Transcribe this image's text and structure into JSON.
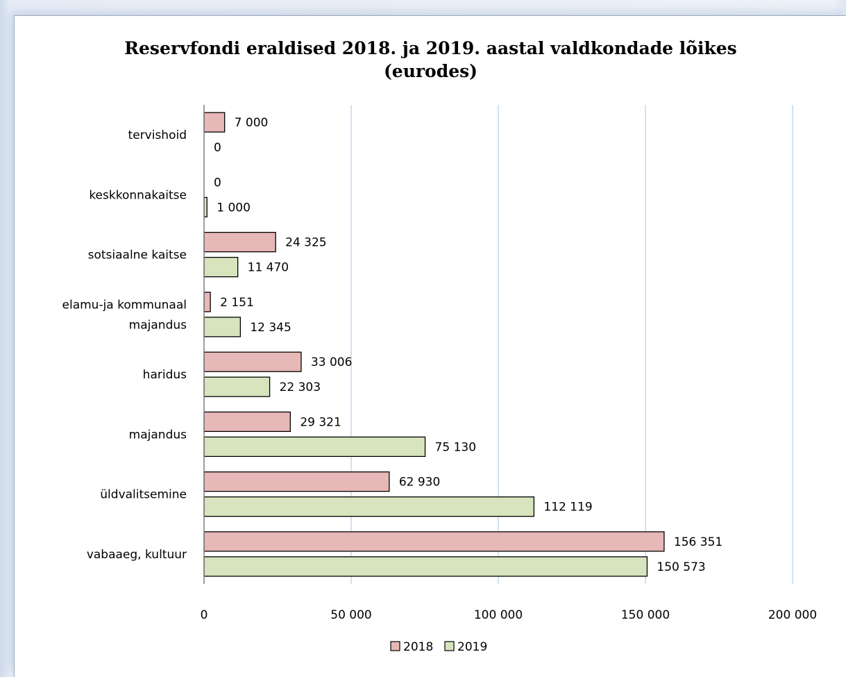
{
  "chart_data": {
    "type": "bar",
    "orientation": "horizontal",
    "title": "Reservfondi eraldised 2018. ja 2019. aastal valdkondade  lõikes",
    "subtitle": "(eurodes)",
    "categories": [
      [
        "tervishoid"
      ],
      [
        "keskkonnakaitse"
      ],
      [
        "sotsiaalne kaitse"
      ],
      [
        "elamu-ja kommunaal",
        "majandus"
      ],
      [
        "haridus"
      ],
      [
        "majandus"
      ],
      [
        "üldvalitsemine"
      ],
      [
        "vabaaeg, kultuur"
      ]
    ],
    "series": [
      {
        "name": "2018",
        "color": "#e6b8b7",
        "values": [
          7000,
          0,
          24325,
          2151,
          33006,
          29321,
          62930,
          156351
        ],
        "labels": [
          "7 000",
          "0",
          "24 325",
          "2 151",
          "33 006",
          "29 321",
          "62 930",
          "156 351"
        ]
      },
      {
        "name": "2019",
        "color": "#d7e4bd",
        "values": [
          0,
          1000,
          11470,
          12345,
          22303,
          75130,
          112119,
          150573
        ],
        "labels": [
          "0",
          "1 000",
          "11 470",
          "12 345",
          "22 303",
          "75 130",
          "112 119",
          "150 573"
        ]
      }
    ],
    "xlim": [
      0,
      200000
    ],
    "xticks": [
      0,
      50000,
      100000,
      150000,
      200000
    ],
    "xtick_labels": [
      "0",
      "50 000",
      "100 000",
      "150 000",
      "200 000"
    ],
    "grid": "vertical",
    "legend": "bottom",
    "colors": {
      "gridline": "#c5d9e8",
      "bar_border": "#000000"
    }
  }
}
